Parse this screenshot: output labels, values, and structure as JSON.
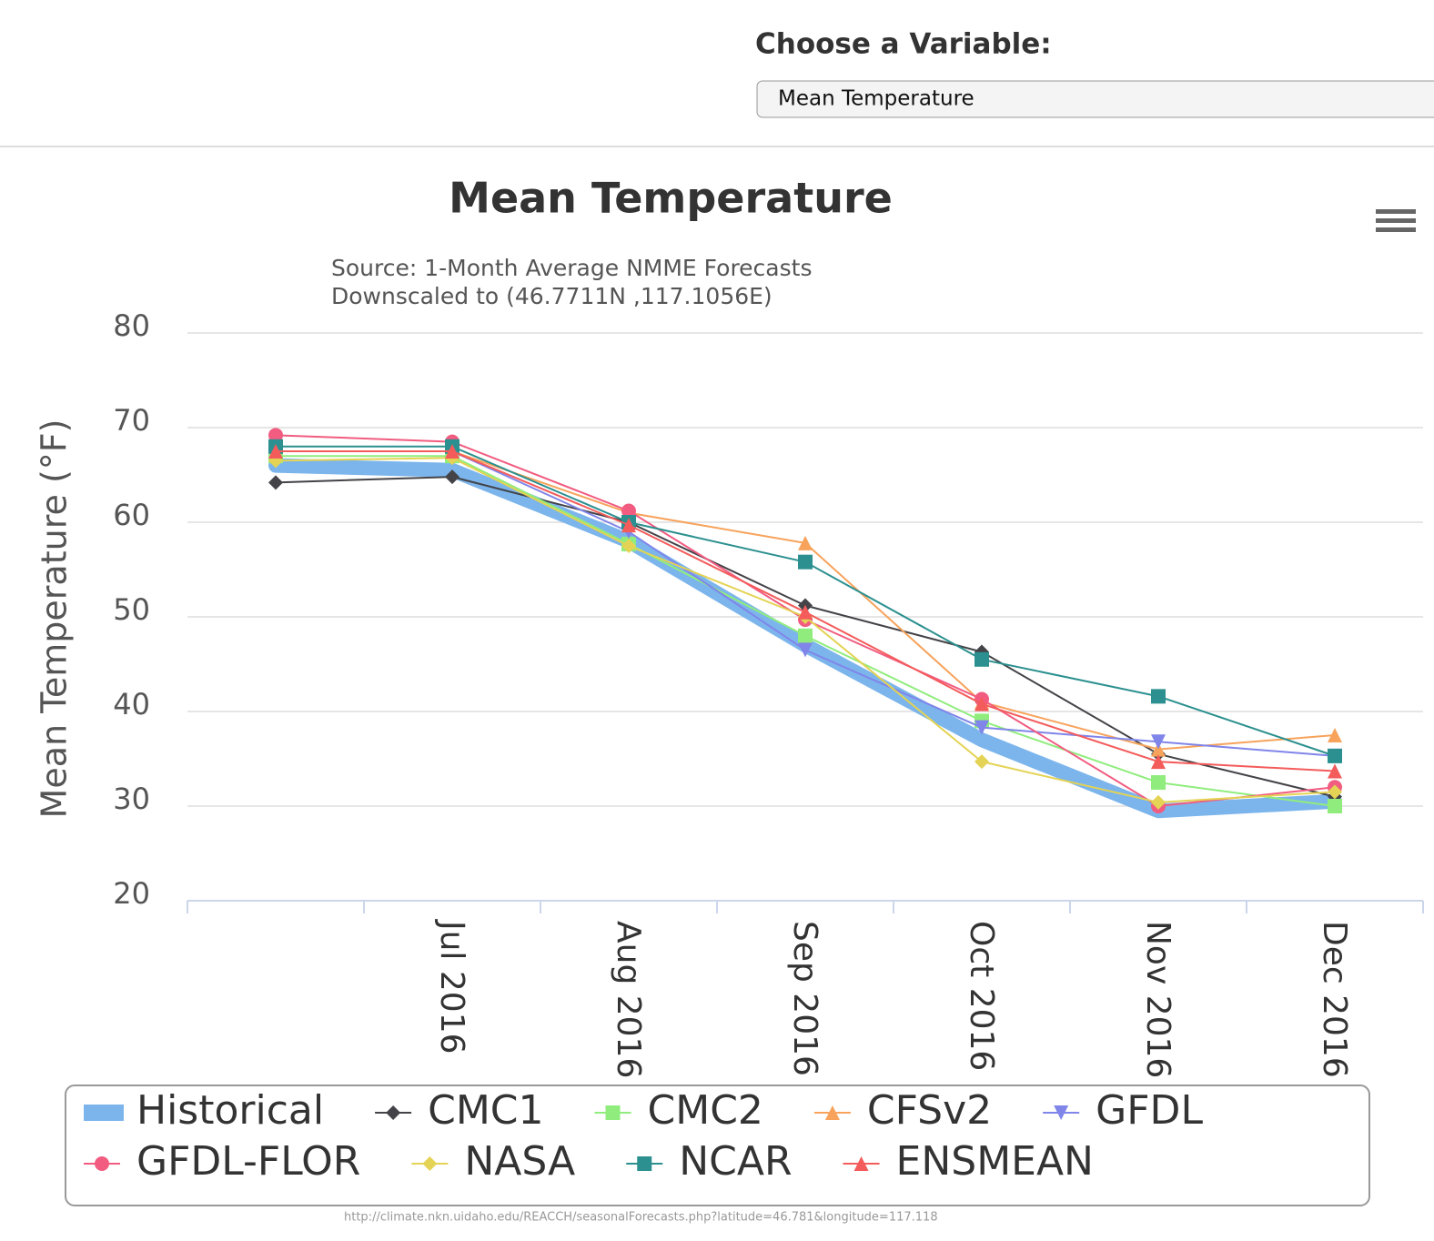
{
  "header": {
    "label": "Choose a Variable:",
    "select": "Mean Temperature"
  },
  "chart_data": {
    "type": "line",
    "title": "Mean Temperature",
    "subtitle": [
      "Source: 1-Month Average NMME Forecasts",
      "Downscaled to (46.7711N ,117.1056E)"
    ],
    "y_label": "Mean Temperature (°F)",
    "categories": [
      null,
      "Jul 2016",
      "Aug 2016",
      "Sep 2016",
      "Oct 2016",
      "Nov 2016",
      "Dec 2016"
    ],
    "ylim": [
      20,
      80
    ],
    "yticks": [
      20,
      30,
      40,
      50,
      60,
      70,
      80
    ],
    "grid": true,
    "legend": "bottom",
    "series": [
      {
        "name": "Historical",
        "color": "#7cb5ec",
        "marker": null,
        "values": [
          66,
          65.5,
          58,
          47,
          37,
          29.5,
          30.5
        ]
      },
      {
        "name": "CMC1",
        "color": "#434348",
        "marker": "diamond",
        "values": [
          64.2,
          64.8,
          60,
          51.2,
          46.3,
          35.5,
          31
        ]
      },
      {
        "name": "CMC2",
        "color": "#90ed7d",
        "marker": "square",
        "values": [
          67,
          67,
          57.7,
          48,
          39,
          32.5,
          30
        ]
      },
      {
        "name": "CFSv2",
        "color": "#f7a35c",
        "marker": "triangle",
        "values": [
          67.5,
          67.5,
          61,
          57.8,
          41,
          36,
          37.5
        ]
      },
      {
        "name": "GFDL",
        "color": "#8085e9",
        "marker": "triangle-down",
        "values": [
          67.5,
          67.5,
          59,
          46.5,
          38.3,
          36.8,
          35.3
        ]
      },
      {
        "name": "GFDL-FLOR",
        "color": "#f15c80",
        "marker": "circle",
        "values": [
          69.2,
          68.5,
          61.2,
          49.7,
          41.3,
          30,
          32
        ]
      },
      {
        "name": "NASA",
        "color": "#e4d354",
        "marker": "diamond",
        "values": [
          66.5,
          66.8,
          57.5,
          50,
          34.7,
          30.4,
          31.5
        ]
      },
      {
        "name": "NCAR",
        "color": "#2b908f",
        "marker": "square",
        "values": [
          68,
          68,
          60,
          55.8,
          45.5,
          41.6,
          35.3
        ]
      },
      {
        "name": "ENSMEAN",
        "color": "#f45b5b",
        "marker": "triangle",
        "values": [
          67.5,
          67.5,
          59.7,
          50.5,
          40.8,
          34.7,
          33.7
        ]
      }
    ]
  },
  "footer": {
    "url": "http://climate.nkn.uidaho.edu/REACCH/seasonalForecasts.php?latitude=46.781&longitude=117.118"
  }
}
